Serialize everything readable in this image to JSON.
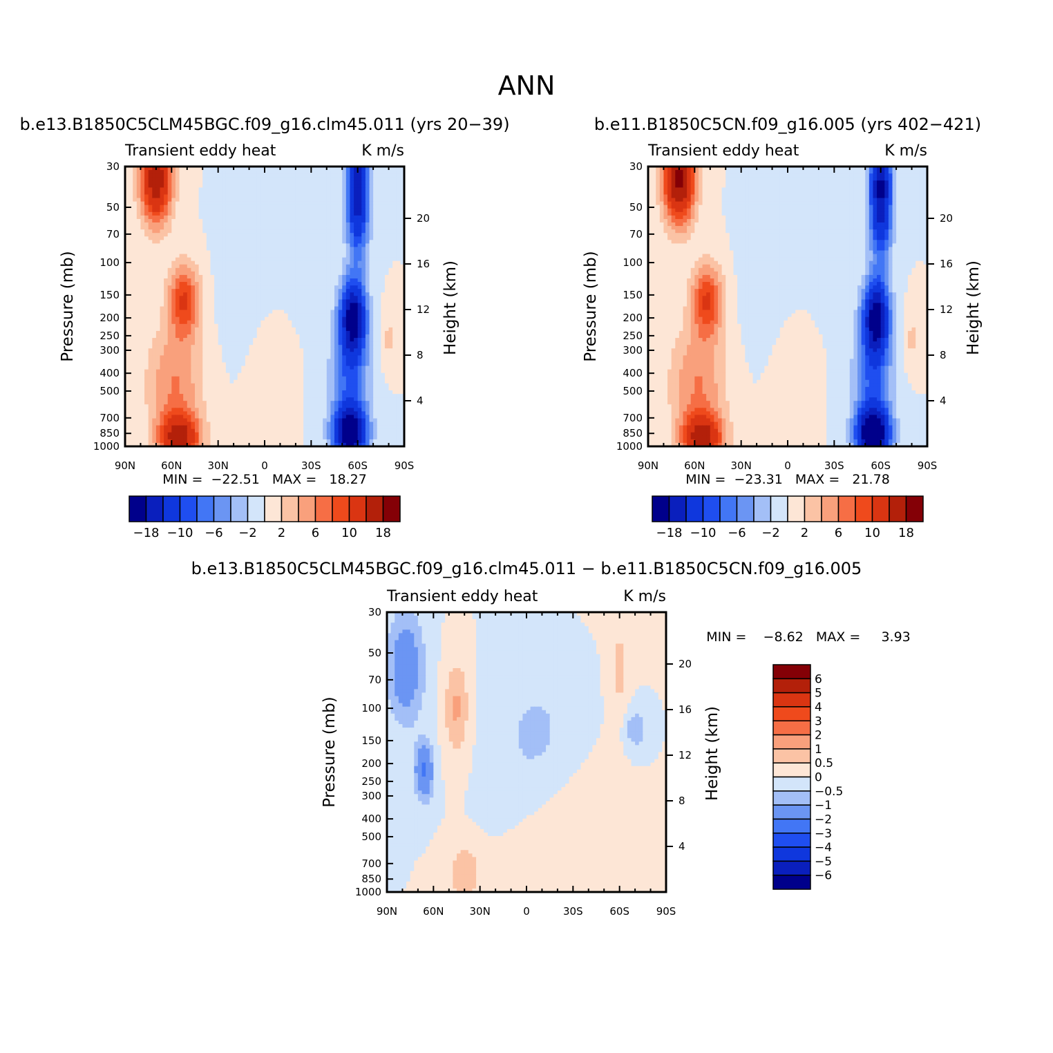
{
  "figure": {
    "title": "ANN"
  },
  "panels": [
    {
      "case_title": "b.e13.B1850C5CLM45BGC.f09_g16.clm45.011 (yrs 20−39)",
      "variable_label": "Transient eddy heat",
      "units_label": "K m/s",
      "min_max": "MIN =  −22.51   MAX =   18.27"
    },
    {
      "case_title": "b.e11.B1850C5CN.f09_g16.005 (yrs 402−421)",
      "variable_label": "Transient eddy heat",
      "units_label": "K m/s",
      "min_max": "MIN =  −23.31   MAX =   21.78"
    },
    {
      "case_title": "b.e13.B1850C5CLM45BGC.f09_g16.clm45.011 − b.e11.B1850C5CN.f09_g16.005",
      "variable_label": "Transient eddy heat",
      "units_label": "K m/s",
      "min_max": "MIN =    −8.62   MAX =     3.93"
    }
  ],
  "axes": {
    "ylabel_left": "Pressure (mb)",
    "ylabel_right": "Height (km)",
    "pressure_ticks": [
      "30",
      "50",
      "70",
      "100",
      "150",
      "200",
      "250",
      "300",
      "400",
      "500",
      "700",
      "850",
      "1000"
    ],
    "height_ticks": [
      "20",
      "16",
      "12",
      "8",
      "4"
    ],
    "lat_ticks": [
      "90N",
      "60N",
      "30N",
      "0",
      "30S",
      "60S",
      "90S"
    ]
  },
  "colorbars": {
    "abs_labels": [
      "−18",
      "−10",
      "−6",
      "−2",
      "2",
      "6",
      "10",
      "18"
    ],
    "diff_labels": [
      "6",
      "5",
      "4",
      "3",
      "2",
      "1",
      "0.5",
      "0",
      "−0.5",
      "−1",
      "−2",
      "−3",
      "−4",
      "−5",
      "−6"
    ],
    "palette": [
      "#00008b",
      "#0a1fbd",
      "#0f37dd",
      "#1f4ef0",
      "#4276f5",
      "#6b95f3",
      "#a3bff7",
      "#d3e5fa",
      "#fde6d6",
      "#fbc3a5",
      "#f9a07c",
      "#f66e45",
      "#ef4a1c",
      "#da3512",
      "#b3200a",
      "#840006"
    ]
  },
  "chart_data": [
    {
      "type": "heatmap",
      "title": "b.e13.B1850C5CLM45BGC.f09_g16.clm45.011 (yrs 20−39)",
      "subtitle": "Transient eddy heat",
      "units": "K m/s",
      "xlabel": "",
      "ylabel": "Pressure (mb)",
      "ylabel_right": "Height (km)",
      "x": [
        "90N",
        "60N",
        "30N",
        "0",
        "30S",
        "60S",
        "90S"
      ],
      "ylim": [
        1000,
        30
      ],
      "min": -22.51,
      "max": 18.27,
      "levels": [
        -18,
        -14,
        -10,
        -8,
        -6,
        -4,
        -2,
        0,
        2,
        4,
        6,
        8,
        10,
        14,
        18
      ],
      "features": [
        {
          "lat": 70,
          "p": 40,
          "value": 17
        },
        {
          "lat": 50,
          "p": 160,
          "value": 10
        },
        {
          "lat": 55,
          "p": 900,
          "value": 15
        },
        {
          "lat": -60,
          "p": 40,
          "value": -16
        },
        {
          "lat": -58,
          "p": 200,
          "value": -18
        },
        {
          "lat": -55,
          "p": 850,
          "value": -20
        },
        {
          "lat": 0,
          "p": 200,
          "value": -1
        },
        {
          "lat": -80,
          "p": 250,
          "value": 2
        }
      ]
    },
    {
      "type": "heatmap",
      "title": "b.e11.B1850C5CN.f09_g16.005 (yrs 402−421)",
      "subtitle": "Transient eddy heat",
      "units": "K m/s",
      "xlabel": "",
      "ylabel": "Pressure (mb)",
      "ylabel_right": "Height (km)",
      "x": [
        "90N",
        "60N",
        "30N",
        "0",
        "30S",
        "60S",
        "90S"
      ],
      "ylim": [
        1000,
        30
      ],
      "min": -23.31,
      "max": 21.78,
      "levels": [
        -18,
        -14,
        -10,
        -8,
        -6,
        -4,
        -2,
        0,
        2,
        4,
        6,
        8,
        10,
        14,
        18
      ],
      "features": [
        {
          "lat": 70,
          "p": 40,
          "value": 20
        },
        {
          "lat": 50,
          "p": 160,
          "value": 10
        },
        {
          "lat": 55,
          "p": 900,
          "value": 15
        },
        {
          "lat": -60,
          "p": 40,
          "value": -18
        },
        {
          "lat": -55,
          "p": 200,
          "value": -20
        },
        {
          "lat": -55,
          "p": 850,
          "value": -21
        },
        {
          "lat": -80,
          "p": 250,
          "value": 2
        }
      ]
    },
    {
      "type": "heatmap",
      "title": "b.e13.B1850C5CLM45BGC.f09_g16.clm45.011 − b.e11.B1850C5CN.f09_g16.005",
      "subtitle": "Transient eddy heat",
      "units": "K m/s",
      "xlabel": "",
      "ylabel": "Pressure (mb)",
      "ylabel_right": "Height (km)",
      "x": [
        "90N",
        "60N",
        "30N",
        "0",
        "30S",
        "60S",
        "90S"
      ],
      "ylim": [
        1000,
        30
      ],
      "min": -8.62,
      "max": 3.93,
      "levels": [
        -6,
        -5,
        -4,
        -3,
        -2,
        -1,
        -0.5,
        0,
        0.5,
        1,
        2,
        3,
        4,
        5,
        6
      ],
      "features": [
        {
          "lat": 80,
          "p": 60,
          "value": -1.5
        },
        {
          "lat": 45,
          "p": 100,
          "value": 1
        },
        {
          "lat": 65,
          "p": 220,
          "value": -2
        },
        {
          "lat": 40,
          "p": 800,
          "value": 1
        },
        {
          "lat": -20,
          "p": 300,
          "value": 0.4
        }
      ]
    }
  ]
}
